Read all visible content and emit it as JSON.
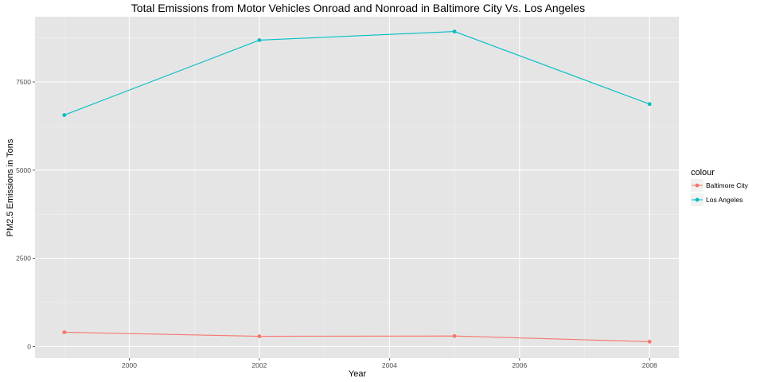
{
  "chart_data": {
    "type": "line",
    "title": "Total Emissions from Motor Vehicles Onroad and Nonroad in Baltimore City Vs. Los Angeles",
    "xlabel": "Year",
    "ylabel": "PM2.5 Emissions in Tons",
    "x": [
      1999,
      2002,
      2005,
      2008
    ],
    "xlim": [
      1998.55,
      2008.45
    ],
    "ylim": [
      -330,
      9350
    ],
    "x_ticks": [
      2000,
      2002,
      2004,
      2006,
      2008
    ],
    "y_ticks": [
      0,
      2500,
      5000,
      7500
    ],
    "x_tick_labels": [
      "2000",
      "2002",
      "2004",
      "2006",
      "2008"
    ],
    "y_tick_labels": [
      "0",
      "2500",
      "5000",
      "7500"
    ],
    "grid": true,
    "legend": {
      "title": "colour",
      "position": "right"
    },
    "series": [
      {
        "name": "Baltimore City",
        "color": "#F8766D",
        "values": [
          404,
          290,
          297,
          137
        ]
      },
      {
        "name": "Los Angeles",
        "color": "#00BFC4",
        "values": [
          6562,
          8685,
          8930,
          6872
        ]
      }
    ]
  }
}
